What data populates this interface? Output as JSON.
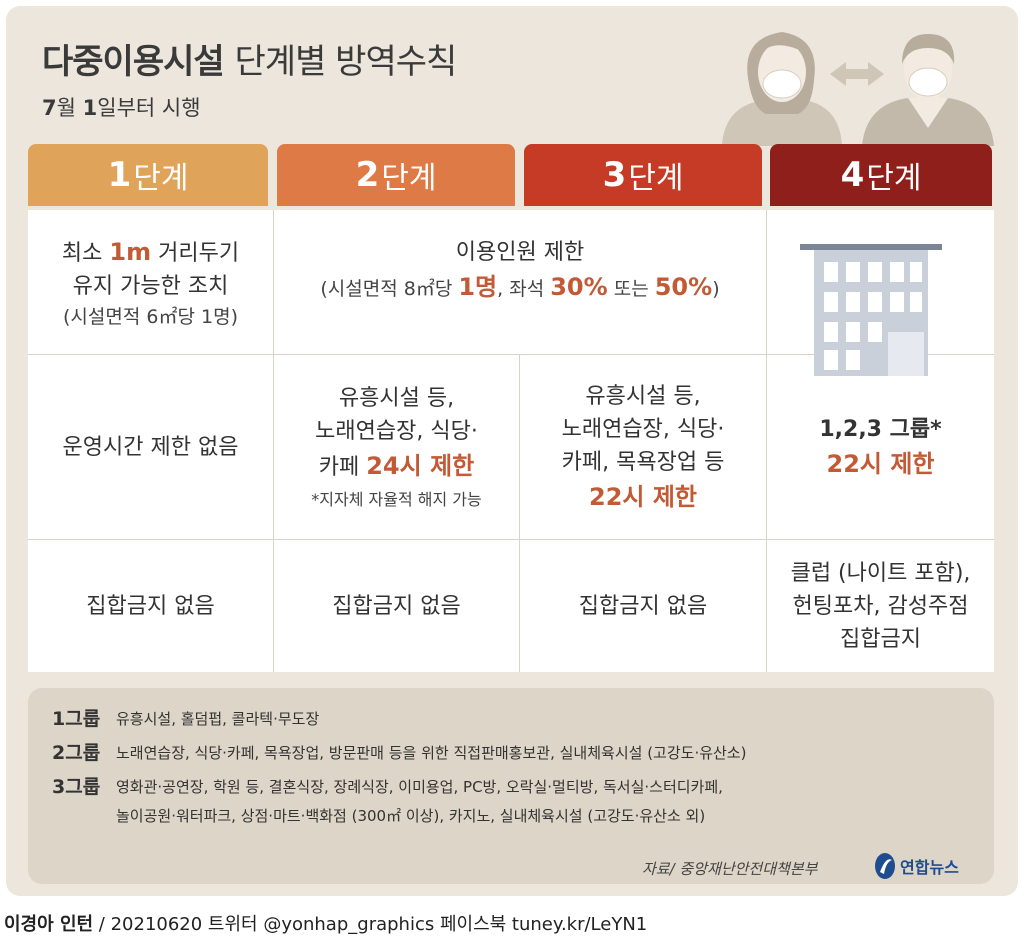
{
  "title": {
    "bold": "다중이용시설",
    "light": "단계별 방역수칙"
  },
  "subtitle": {
    "month": "7",
    "month_unit": "월 ",
    "day": "1",
    "rest": "일부터 시행"
  },
  "stages": [
    {
      "num": "1",
      "label": "단계",
      "color": "#e0a35a"
    },
    {
      "num": "2",
      "label": "단계",
      "color": "#de7a46"
    },
    {
      "num": "3",
      "label": "단계",
      "color": "#c53b26"
    },
    {
      "num": "4",
      "label": "단계",
      "color": "#8e1f1a"
    }
  ],
  "row1": {
    "stage1": {
      "pre": "최소 ",
      "hl": "1m",
      "post": " 거리두기",
      "line2": "유지 가능한 조치",
      "line3": "(시설면적 6㎡당 1명)"
    },
    "stage23": {
      "line1": "이용인원 제한",
      "pre": "(시설면적 8㎡당 ",
      "hl1": "1명",
      "mid": ", 좌석 ",
      "hl2": "30%",
      "mid2": " 또는 ",
      "hl3": "50%",
      "post": ")"
    }
  },
  "row2": {
    "stage1": "운영시간 제한 없음",
    "stage2": {
      "line1": "유흥시설 등,",
      "line2": "노래연습장, 식당·",
      "pre3": "카페 ",
      "hl": "24시 제한",
      "note": "*지자체 자율적 해지 가능"
    },
    "stage3": {
      "line1": "유흥시설 등,",
      "line2": "노래연습장, 식당·",
      "line3": "카페, 목욕장업 등",
      "hl": "22시 제한"
    },
    "stage4": {
      "line1": "1,2,3 그룹*",
      "hl": "22시 제한"
    }
  },
  "row3": {
    "stage1": "집합금지 없음",
    "stage2": "집합금지 없음",
    "stage3": "집합금지 없음",
    "stage4": {
      "line1": "클럽 (나이트 포함),",
      "line2": "헌팅포차, 감성주점",
      "line3": "집합금지"
    }
  },
  "groups": [
    {
      "label": "1그룹",
      "lines": [
        "유흥시설, 홀덤펍, 콜라텍·무도장"
      ]
    },
    {
      "label": "2그룹",
      "lines": [
        "노래연습장, 식당·카페, 목욕장업, 방문판매 등을 위한 직접판매홍보관, 실내체육시설 (고강도·유산소)"
      ]
    },
    {
      "label": "3그룹",
      "lines": [
        "영화관·공연장, 학원 등, 결혼식장, 장례식장, 이미용업, PC방, 오락실·멀티방, 독서실·스터디카페,",
        "놀이공원·워터파크, 상점·마트·백화점 (300㎡ 이상), 카지노, 실내체육시설 (고강도·유산소 외)"
      ]
    }
  ],
  "source": "자료/ 중앙재난안전대책본부",
  "logo": "연합뉴스",
  "footer": {
    "author": "이경아 인턴",
    "rest": " / 20210620 트위터 @yonhap_graphics  페이스북 tuney.kr/LeYN1"
  },
  "colors": {
    "accent": "#c35a36",
    "panel_bg": "#ece6dc",
    "groups_bg": "#ddd5c7"
  }
}
